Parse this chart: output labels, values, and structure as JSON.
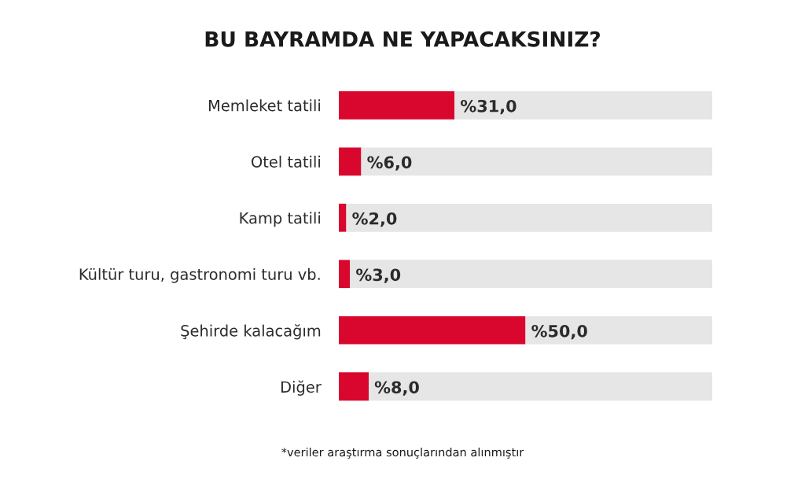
{
  "chart_data": {
    "type": "bar",
    "orientation": "horizontal",
    "stacked": true,
    "title": "BU BAYRAMDA NE YAPACAKSINIZ?",
    "categories": [
      "Memleket tatili",
      "Otel tatili",
      "Kamp tatili",
      "Kültür turu, gastronomi turu vb.",
      "Şehirde kalacağım",
      "Diğer"
    ],
    "series": [
      {
        "color": "#d9072e",
        "values": [
          31.0,
          6.0,
          2.0,
          3.0,
          50.0,
          8.0
        ],
        "value_labels": [
          "%31,0",
          "%6,0",
          "%2,0",
          "%3,0",
          "%50,0",
          "%8,0"
        ]
      },
      {
        "color": "#e6e6e6",
        "values": [
          69.0,
          94.0,
          98.0,
          97.0,
          50.0,
          92.0
        ]
      }
    ],
    "xlim": [
      0,
      100
    ],
    "tick_labels": "y",
    "grid": false,
    "annotations": [
      "*veriler araştırma sonuçlarından alınmıştır"
    ]
  }
}
